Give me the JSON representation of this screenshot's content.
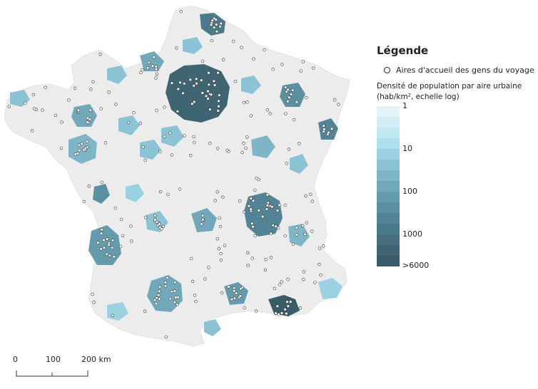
{
  "legend": {
    "title": "Légende",
    "points_label": "Aires d'accueil des gens du voyage",
    "density_label_line1": "Densité de population par aire urbaine",
    "density_label_line2": "(hab/km², echelle log)",
    "ramp_labels": [
      "1",
      "10",
      "100",
      "1000",
      ">6000"
    ],
    "ramp_colors": [
      "#e6f4f8",
      "#d3edf4",
      "#c0e6f0",
      "#ace0ec",
      "#9bd2e2",
      "#8cc3d4",
      "#7fb6c7",
      "#72a9ba",
      "#659cad",
      "#5b90a1",
      "#528495",
      "#4b7a8a",
      "#456f7e",
      "#3f6572",
      "#3a5c68"
    ]
  },
  "scale": {
    "labels": [
      "0",
      "100",
      "200 km"
    ]
  },
  "colors": {
    "land": "#ececec",
    "point_fill": "#ffffff",
    "point_stroke": "#333333"
  }
}
